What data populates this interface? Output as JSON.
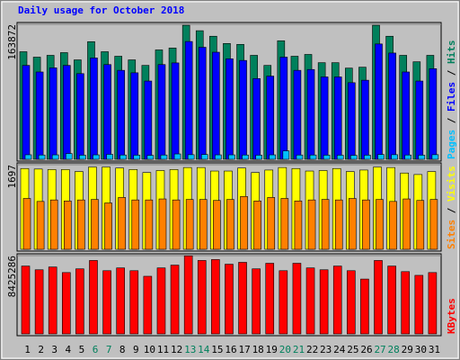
{
  "chart_data": [
    {
      "type": "bar",
      "title": "Daily usage for October 2018",
      "categories": [
        "1",
        "2",
        "3",
        "4",
        "5",
        "6",
        "7",
        "8",
        "9",
        "10",
        "11",
        "12",
        "13",
        "14",
        "15",
        "16",
        "17",
        "18",
        "19",
        "20",
        "21",
        "22",
        "23",
        "24",
        "25",
        "26",
        "27",
        "28",
        "29",
        "30",
        "31"
      ],
      "category_colors": [
        "#000000",
        "#000000",
        "#000000",
        "#000000",
        "#000000",
        "#00805c",
        "#00805c",
        "#000000",
        "#000000",
        "#000000",
        "#000000",
        "#000000",
        "#00805c",
        "#00805c",
        "#000000",
        "#000000",
        "#000000",
        "#000000",
        "#000000",
        "#00805c",
        "#00805c",
        "#000000",
        "#000000",
        "#000000",
        "#000000",
        "#000000",
        "#00805c",
        "#00805c",
        "#000000",
        "#000000",
        "#000000"
      ],
      "legend_separator": " / ",
      "ylim": [
        0,
        163872
      ],
      "yticks": [
        163872
      ],
      "series": [
        {
          "name": "Hits",
          "color": "#00805c",
          "values": [
            130600,
            124000,
            126200,
            129500,
            120700,
            142800,
            130600,
            125100,
            120700,
            114000,
            132800,
            135100,
            162700,
            156100,
            149400,
            140600,
            139500,
            126200,
            114000,
            143900,
            125100,
            127300,
            117300,
            117300,
            110700,
            111800,
            162700,
            149400,
            126200,
            118400,
            126200
          ]
        },
        {
          "name": "Files",
          "color": "#0000ff",
          "values": [
            114000,
            106000,
            111000,
            114000,
            104000,
            123000,
            115000,
            108000,
            105000,
            95000,
            115000,
            117000,
            143000,
            136000,
            130000,
            122000,
            120000,
            98000,
            101000,
            124000,
            108000,
            109000,
            100000,
            100000,
            93000,
            96000,
            140000,
            129000,
            106000,
            95000,
            110000
          ]
        },
        {
          "name": "Pages",
          "color": "#00c0ff",
          "values": [
            5500,
            5200,
            5400,
            7000,
            5000,
            5400,
            6000,
            5200,
            5000,
            4800,
            5200,
            6500,
            5600,
            5800,
            5400,
            5400,
            5200,
            5000,
            5400,
            10200,
            5200,
            5200,
            5000,
            5000,
            4800,
            5000,
            5800,
            5600,
            5200,
            5000,
            5600
          ]
        }
      ]
    },
    {
      "type": "bar",
      "legend_separator": " / ",
      "ylim": [
        0,
        1697
      ],
      "yticks": [
        1697
      ],
      "series": [
        {
          "name": "Visits",
          "color": "#ffff00",
          "values": [
            1620,
            1610,
            1600,
            1600,
            1560,
            1650,
            1650,
            1630,
            1600,
            1540,
            1580,
            1600,
            1640,
            1640,
            1570,
            1570,
            1630,
            1540,
            1590,
            1640,
            1620,
            1570,
            1580,
            1620,
            1560,
            1590,
            1650,
            1640,
            1530,
            1500,
            1560
          ]
        },
        {
          "name": "Sites",
          "color": "#ff8000",
          "values": [
            1020,
            960,
            990,
            970,
            990,
            1000,
            930,
            1040,
            990,
            990,
            1010,
            990,
            1000,
            1000,
            980,
            1000,
            1060,
            970,
            1040,
            1020,
            970,
            990,
            1000,
            990,
            1020,
            990,
            1000,
            960,
            1010,
            980,
            1000
          ]
        }
      ]
    },
    {
      "type": "bar",
      "ylim": [
        0,
        8425286
      ],
      "yticks": [
        8425286
      ],
      "series": [
        {
          "name": "KBytes",
          "color": "#ff0000",
          "values": [
            7300000,
            6900000,
            7200000,
            6600000,
            7000000,
            7900000,
            6800000,
            7100000,
            6800000,
            6200000,
            7100000,
            7400000,
            8400000,
            7900000,
            8000000,
            7500000,
            7700000,
            7000000,
            7600000,
            6800000,
            7600000,
            7100000,
            6900000,
            7300000,
            6800000,
            5900000,
            7900000,
            7300000,
            6700000,
            6300000,
            6600000
          ]
        }
      ]
    }
  ]
}
